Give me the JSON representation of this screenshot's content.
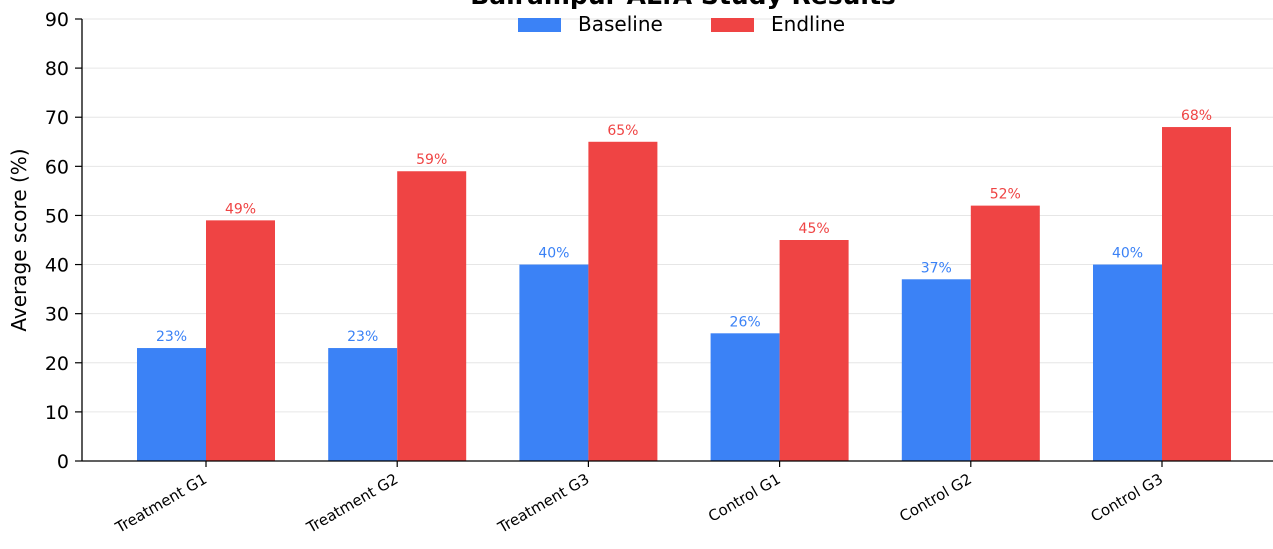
{
  "chart_data": {
    "type": "bar",
    "title": "Balrampur ALfA Study Results",
    "xlabel": "",
    "ylabel": "Average score (%)",
    "ylim": [
      0,
      90
    ],
    "yticks": [
      0,
      10,
      20,
      30,
      40,
      50,
      60,
      70,
      80,
      90
    ],
    "grid": "horizontal",
    "legend_position": "top-center",
    "categories": [
      "Treatment G1",
      "Treatment G2",
      "Treatment G3",
      "Control G1",
      "Control G2",
      "Control G3"
    ],
    "series": [
      {
        "name": "Baseline",
        "color": "#3b82f6",
        "values": [
          23,
          23,
          40,
          26,
          37,
          40
        ],
        "labels": [
          "23%",
          "23%",
          "40%",
          "26%",
          "37%",
          "40%"
        ]
      },
      {
        "name": "Endline",
        "color": "#ef4444",
        "values": [
          49,
          59,
          65,
          45,
          52,
          68
        ],
        "labels": [
          "49%",
          "59%",
          "65%",
          "45%",
          "52%",
          "68%"
        ]
      }
    ]
  }
}
